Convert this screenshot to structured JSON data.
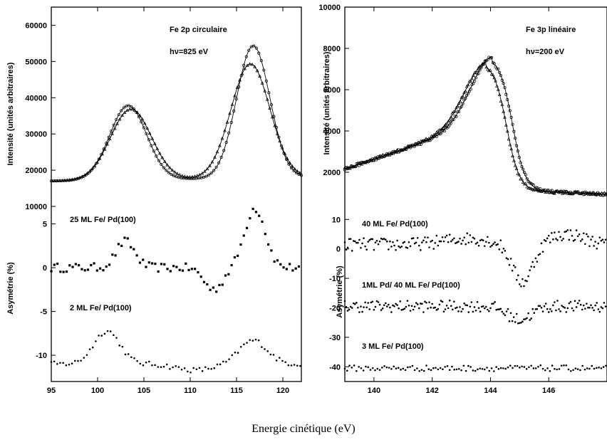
{
  "chart_data": [
    {
      "type": "scatter",
      "panel": "left",
      "title": "Fe 2p circulaire",
      "subtitle": "hν=825 eV",
      "xlabel": "Energie cinétique (eV)",
      "upper": {
        "ylabel": "Intensité (unités arbitraires)",
        "ylim": [
          10000,
          65000
        ],
        "yticks": [
          "10000",
          "20000",
          "30000",
          "40000",
          "50000",
          "60000"
        ],
        "baseline": 17000,
        "curves": [
          {
            "marker": "circle",
            "peaks": [
              {
                "center": 103.3,
                "height": 37500,
                "width": 2.0
              },
              {
                "center": 116.8,
                "height": 53500,
                "width": 1.8
              }
            ]
          },
          {
            "marker": "triangle",
            "peaks": [
              {
                "center": 103.6,
                "height": 36500,
                "width": 2.2
              },
              {
                "center": 116.5,
                "height": 48500,
                "width": 2.1
              }
            ]
          }
        ]
      },
      "lower": {
        "ylabel": "Asymétrie (%)",
        "ylim": [
          -13,
          7
        ],
        "yticks": [
          "5",
          "0",
          "-5",
          "-10"
        ],
        "series": [
          {
            "name": "25 ML Fe/ Pd(100)",
            "marker": "square",
            "offset": 0,
            "noise": 0.5,
            "features": [
              {
                "center": 103.0,
                "amplitude": 3.0,
                "width": 1.0
              },
              {
                "center": 112.5,
                "amplitude": -2.5,
                "width": 1.0
              },
              {
                "center": 117.0,
                "amplitude": 6.8,
                "width": 1.1
              }
            ]
          },
          {
            "name": "2 ML Fe/ Pd(100)",
            "marker": "dot",
            "offset": -11.0,
            "noise": 0.3,
            "features": [
              {
                "center": 101.0,
                "amplitude": 3.8,
                "width": 1.4
              },
              {
                "center": 110.5,
                "amplitude": -0.7,
                "width": 2.0
              },
              {
                "center": 116.8,
                "amplitude": 2.7,
                "width": 1.5
              }
            ]
          }
        ]
      },
      "xlim": [
        95,
        122
      ],
      "xticks": [
        "95",
        "100",
        "105",
        "110",
        "115",
        "120"
      ]
    },
    {
      "type": "scatter",
      "panel": "right",
      "title": "Fe 3p linéaire",
      "subtitle": "hν=200 eV",
      "upper": {
        "ylabel": "Intensité (unités arbitraires)",
        "ylim": [
          0,
          10000
        ],
        "yticks": [
          "2000",
          "4000",
          "6000",
          "8000",
          "10000"
        ],
        "curves": [
          {
            "marker": "circle",
            "peak_x": 144.05,
            "peak_y": 7600
          },
          {
            "marker": "triangle",
            "peak_x": 143.85,
            "peak_y": 7350
          }
        ]
      },
      "lower": {
        "ylabel": "Asymétrie (%)",
        "ylim": [
          -45,
          12
        ],
        "yticks": [
          "10",
          "0",
          "-10",
          "-20",
          "-30",
          "-40"
        ],
        "series": [
          {
            "name": "40 ML Fe/ Pd(100)",
            "marker": "dot",
            "offset": 1.5,
            "noise": 2.2,
            "features": [
              {
                "center": 143.2,
                "amplitude": 2.0,
                "width": 0.8
              },
              {
                "center": 145.1,
                "amplitude": -13.0,
                "width": 0.35
              },
              {
                "center": 146.6,
                "amplitude": 3.5,
                "width": 0.6
              }
            ]
          },
          {
            "name": "1ML Pd/ 40 ML Fe/ Pd(100)",
            "marker": "dot",
            "offset": -19.5,
            "noise": 2.0,
            "features": [
              {
                "center": 145.0,
                "amplitude": -4.5,
                "width": 0.4
              }
            ]
          },
          {
            "name": "3 ML Fe/ Pd(100)",
            "marker": "dot",
            "offset": -40.5,
            "noise": 1.0,
            "features": []
          }
        ]
      },
      "xlim": [
        139,
        148
      ],
      "xticks": [
        "140",
        "142",
        "144",
        "146"
      ]
    }
  ]
}
